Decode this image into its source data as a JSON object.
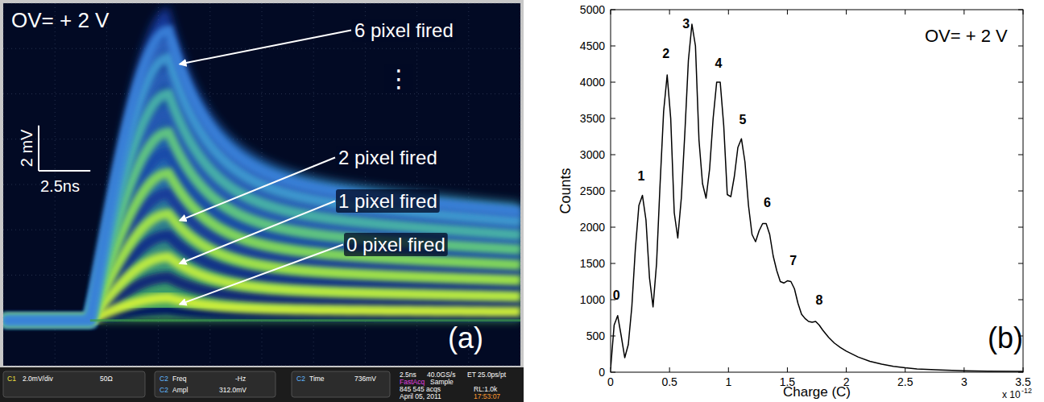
{
  "chart_data": [
    {
      "type": "oscilloscope",
      "title": "OV= + 2 V",
      "panel_label": "(a)",
      "xlim": [
        0,
        25
      ],
      "ylim": [
        -2,
        14
      ],
      "xticks": [
        0,
        2.5,
        5,
        7.5,
        10,
        12.5,
        15,
        17.5,
        20,
        22.5,
        25
      ],
      "yticks": [
        -2,
        0,
        2,
        4,
        6,
        8,
        10,
        12,
        14
      ],
      "grid": true,
      "tick_labels": false,
      "pulse_start_ns": 4.2,
      "pulse_peak_ns": 8.0,
      "decay_ns": [
        2,
        60
      ],
      "peaks": [
        1.0,
        2.8,
        4.7,
        6.5,
        8.3,
        10.0,
        11.6,
        12.8
      ],
      "annotations": [
        {
          "text": "6 pixel fired",
          "level": 6
        },
        {
          "text": "⋮"
        },
        {
          "text": "2 pixel fired",
          "level": 2
        },
        {
          "text": "1 pixel fired",
          "level": 1
        },
        {
          "text": "0 pixel fired",
          "level": 0
        }
      ],
      "scale_bar": {
        "y_label": "2 mV",
        "y_value": 2,
        "x_label": "2.5ns",
        "x_value": 2.5
      },
      "status": [
        "C1",
        "2.0mV/div",
        "50Ω",
        "C2",
        "Freq",
        "-Hz",
        "C2",
        "Ampl",
        "312.0mV",
        "C2",
        "Time",
        "736mV",
        "2.5ns",
        "40.0GS/s",
        "ET 25.0ps/pt",
        "FastAcq",
        "Sample",
        "845 545 acqs",
        "RL:1.0k",
        "April 05, 2011",
        "17:53:07"
      ]
    },
    {
      "type": "line",
      "title": "OV= + 2 V",
      "panel_label": "(b)",
      "x_label": "Charge (C)",
      "y_label": "Counts",
      "x_multiplier": "x 10",
      "x_multiplier_exponent": "-12",
      "xlim": [
        0,
        3.5
      ],
      "ylim": [
        0,
        5000
      ],
      "xticks": [
        0,
        0.5,
        1,
        1.5,
        2,
        2.5,
        3,
        3.5
      ],
      "yticks": [
        0,
        500,
        1000,
        1500,
        2000,
        2500,
        3000,
        3500,
        4000,
        4500,
        5000
      ],
      "color": "#000000",
      "x": [
        0,
        0.03,
        0.06,
        0.09,
        0.12,
        0.15,
        0.18,
        0.21,
        0.24,
        0.27,
        0.3,
        0.33,
        0.36,
        0.39,
        0.42,
        0.45,
        0.48,
        0.51,
        0.54,
        0.57,
        0.6,
        0.63,
        0.66,
        0.69,
        0.72,
        0.75,
        0.78,
        0.81,
        0.84,
        0.87,
        0.9,
        0.93,
        0.96,
        0.99,
        1.02,
        1.05,
        1.08,
        1.11,
        1.14,
        1.17,
        1.2,
        1.23,
        1.26,
        1.29,
        1.32,
        1.35,
        1.38,
        1.41,
        1.44,
        1.47,
        1.5,
        1.53,
        1.56,
        1.59,
        1.62,
        1.65,
        1.68,
        1.71,
        1.74,
        1.77,
        1.8,
        1.85,
        1.9,
        1.95,
        2,
        2.1,
        2.2,
        2.3,
        2.4,
        2.5,
        2.6,
        2.8,
        3,
        3.2,
        3.5
      ],
      "values": [
        50,
        650,
        780,
        500,
        200,
        380,
        900,
        1700,
        2300,
        2440,
        2100,
        1300,
        900,
        1500,
        2600,
        3600,
        4100,
        3500,
        2200,
        1850,
        2400,
        3300,
        4300,
        4800,
        4500,
        3200,
        2600,
        2400,
        2800,
        3500,
        4000,
        4000,
        3400,
        2450,
        2420,
        2700,
        3100,
        3220,
        2900,
        2300,
        1900,
        1800,
        1950,
        2050,
        2050,
        1900,
        1600,
        1400,
        1250,
        1230,
        1260,
        1250,
        1150,
        950,
        800,
        740,
        700,
        690,
        700,
        650,
        580,
        480,
        400,
        340,
        290,
        210,
        150,
        110,
        80,
        60,
        45,
        30,
        20,
        15,
        10
      ],
      "annotations": [
        {
          "text": "0",
          "x": 0.05,
          "y": 1000
        },
        {
          "text": "1",
          "x": 0.26,
          "y": 2650
        },
        {
          "text": "2",
          "x": 0.47,
          "y": 4330
        },
        {
          "text": "3",
          "x": 0.64,
          "y": 4750
        },
        {
          "text": "4",
          "x": 0.915,
          "y": 4200
        },
        {
          "text": "5",
          "x": 1.12,
          "y": 3420
        },
        {
          "text": "6",
          "x": 1.33,
          "y": 2280
        },
        {
          "text": "7",
          "x": 1.55,
          "y": 1480
        },
        {
          "text": "8",
          "x": 1.77,
          "y": 930
        }
      ]
    }
  ]
}
